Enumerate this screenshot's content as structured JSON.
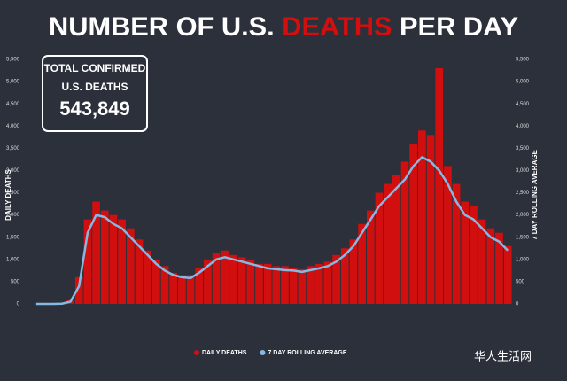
{
  "chart_data": {
    "type": "bar_line",
    "title_parts": [
      "NUMBER OF U.S.",
      "DEATHS",
      "PER DAY"
    ],
    "box": {
      "line1": "TOTAL CONFIRMED",
      "line2": "U.S. DEATHS",
      "total": "543,849"
    },
    "y_label": "DAILY DEATHS",
    "y2_label": "7 DAY ROLLING AVERAGE",
    "categories": [
      null,
      null,
      null,
      null,
      null,
      null,
      null,
      null,
      null,
      null,
      null,
      null,
      null,
      null,
      null,
      null,
      null,
      null,
      null,
      null,
      null,
      null,
      null,
      null,
      null,
      null,
      null,
      null,
      null,
      null,
      null,
      null,
      null,
      null,
      null,
      null,
      null,
      null,
      null,
      null,
      null,
      null,
      null,
      null,
      null,
      null,
      null,
      null,
      null,
      null,
      null,
      null,
      null,
      null,
      null,
      null
    ],
    "series": [
      {
        "name": "DAILY DEATHS",
        "color": "#d20f0f",
        "values": [
          0,
          0,
          2,
          10,
          80,
          600,
          1900,
          2300,
          2100,
          2000,
          1900,
          1700,
          1450,
          1200,
          1000,
          850,
          700,
          650,
          650,
          800,
          1000,
          1150,
          1200,
          1100,
          1050,
          1000,
          900,
          900,
          850,
          850,
          800,
          780,
          850,
          900,
          950,
          1100,
          1250,
          1450,
          1800,
          2100,
          2500,
          2700,
          2900,
          3200,
          3600,
          3900,
          3800,
          5300,
          3100,
          2700,
          2300,
          2200,
          1900,
          1700,
          1600,
          1300
        ]
      },
      {
        "name": "7 DAY ROLLING AVERAGE",
        "color": "#86b8e4",
        "axis": "y2",
        "values": [
          0,
          0,
          0,
          5,
          50,
          400,
          1600,
          2000,
          1950,
          1800,
          1700,
          1500,
          1300,
          1100,
          900,
          750,
          650,
          600,
          580,
          700,
          850,
          1000,
          1050,
          1000,
          950,
          900,
          850,
          800,
          780,
          760,
          750,
          720,
          760,
          800,
          850,
          950,
          1100,
          1300,
          1600,
          1900,
          2200,
          2400,
          2600,
          2800,
          3100,
          3300,
          3200,
          3000,
          2700,
          2300,
          2000,
          1900,
          1700,
          1500,
          1400,
          1200
        ]
      }
    ],
    "ylim": [
      0,
      5500
    ],
    "y2lim": [
      0,
      5500
    ],
    "yticks": [
      0,
      500,
      {
        "value": 1000,
        "label": "1,000"
      },
      {
        "value": 1500,
        "label": "1,500"
      },
      {
        "value": 2000,
        "label": "2,000"
      },
      {
        "value": 2500,
        "label": "2,500"
      },
      {
        "value": 3000,
        "label": "3,000"
      },
      {
        "value": 3500,
        "label": "3,500"
      },
      {
        "value": 4000,
        "label": "4,000"
      },
      {
        "value": 4500,
        "label": "4,500"
      },
      {
        "value": 5000,
        "label": "5,000"
      },
      {
        "value": 5500,
        "label": "5,500"
      }
    ],
    "y2ticks": [
      0,
      500,
      {
        "value": 1000,
        "label": "1,000"
      },
      {
        "value": 1500,
        "label": "1,500"
      },
      {
        "value": 2000,
        "label": "2,000"
      },
      {
        "value": 2500,
        "label": "2,500"
      },
      {
        "value": 3000,
        "label": "3,000"
      },
      {
        "value": 3500,
        "label": "3,500"
      },
      {
        "value": 4000,
        "label": "4,000"
      },
      {
        "value": 4500,
        "label": "4,500"
      },
      {
        "value": 5000,
        "label": "5,000"
      },
      {
        "value": 5500,
        "label": "5,500"
      }
    ],
    "watermark": "华人生活网"
  }
}
